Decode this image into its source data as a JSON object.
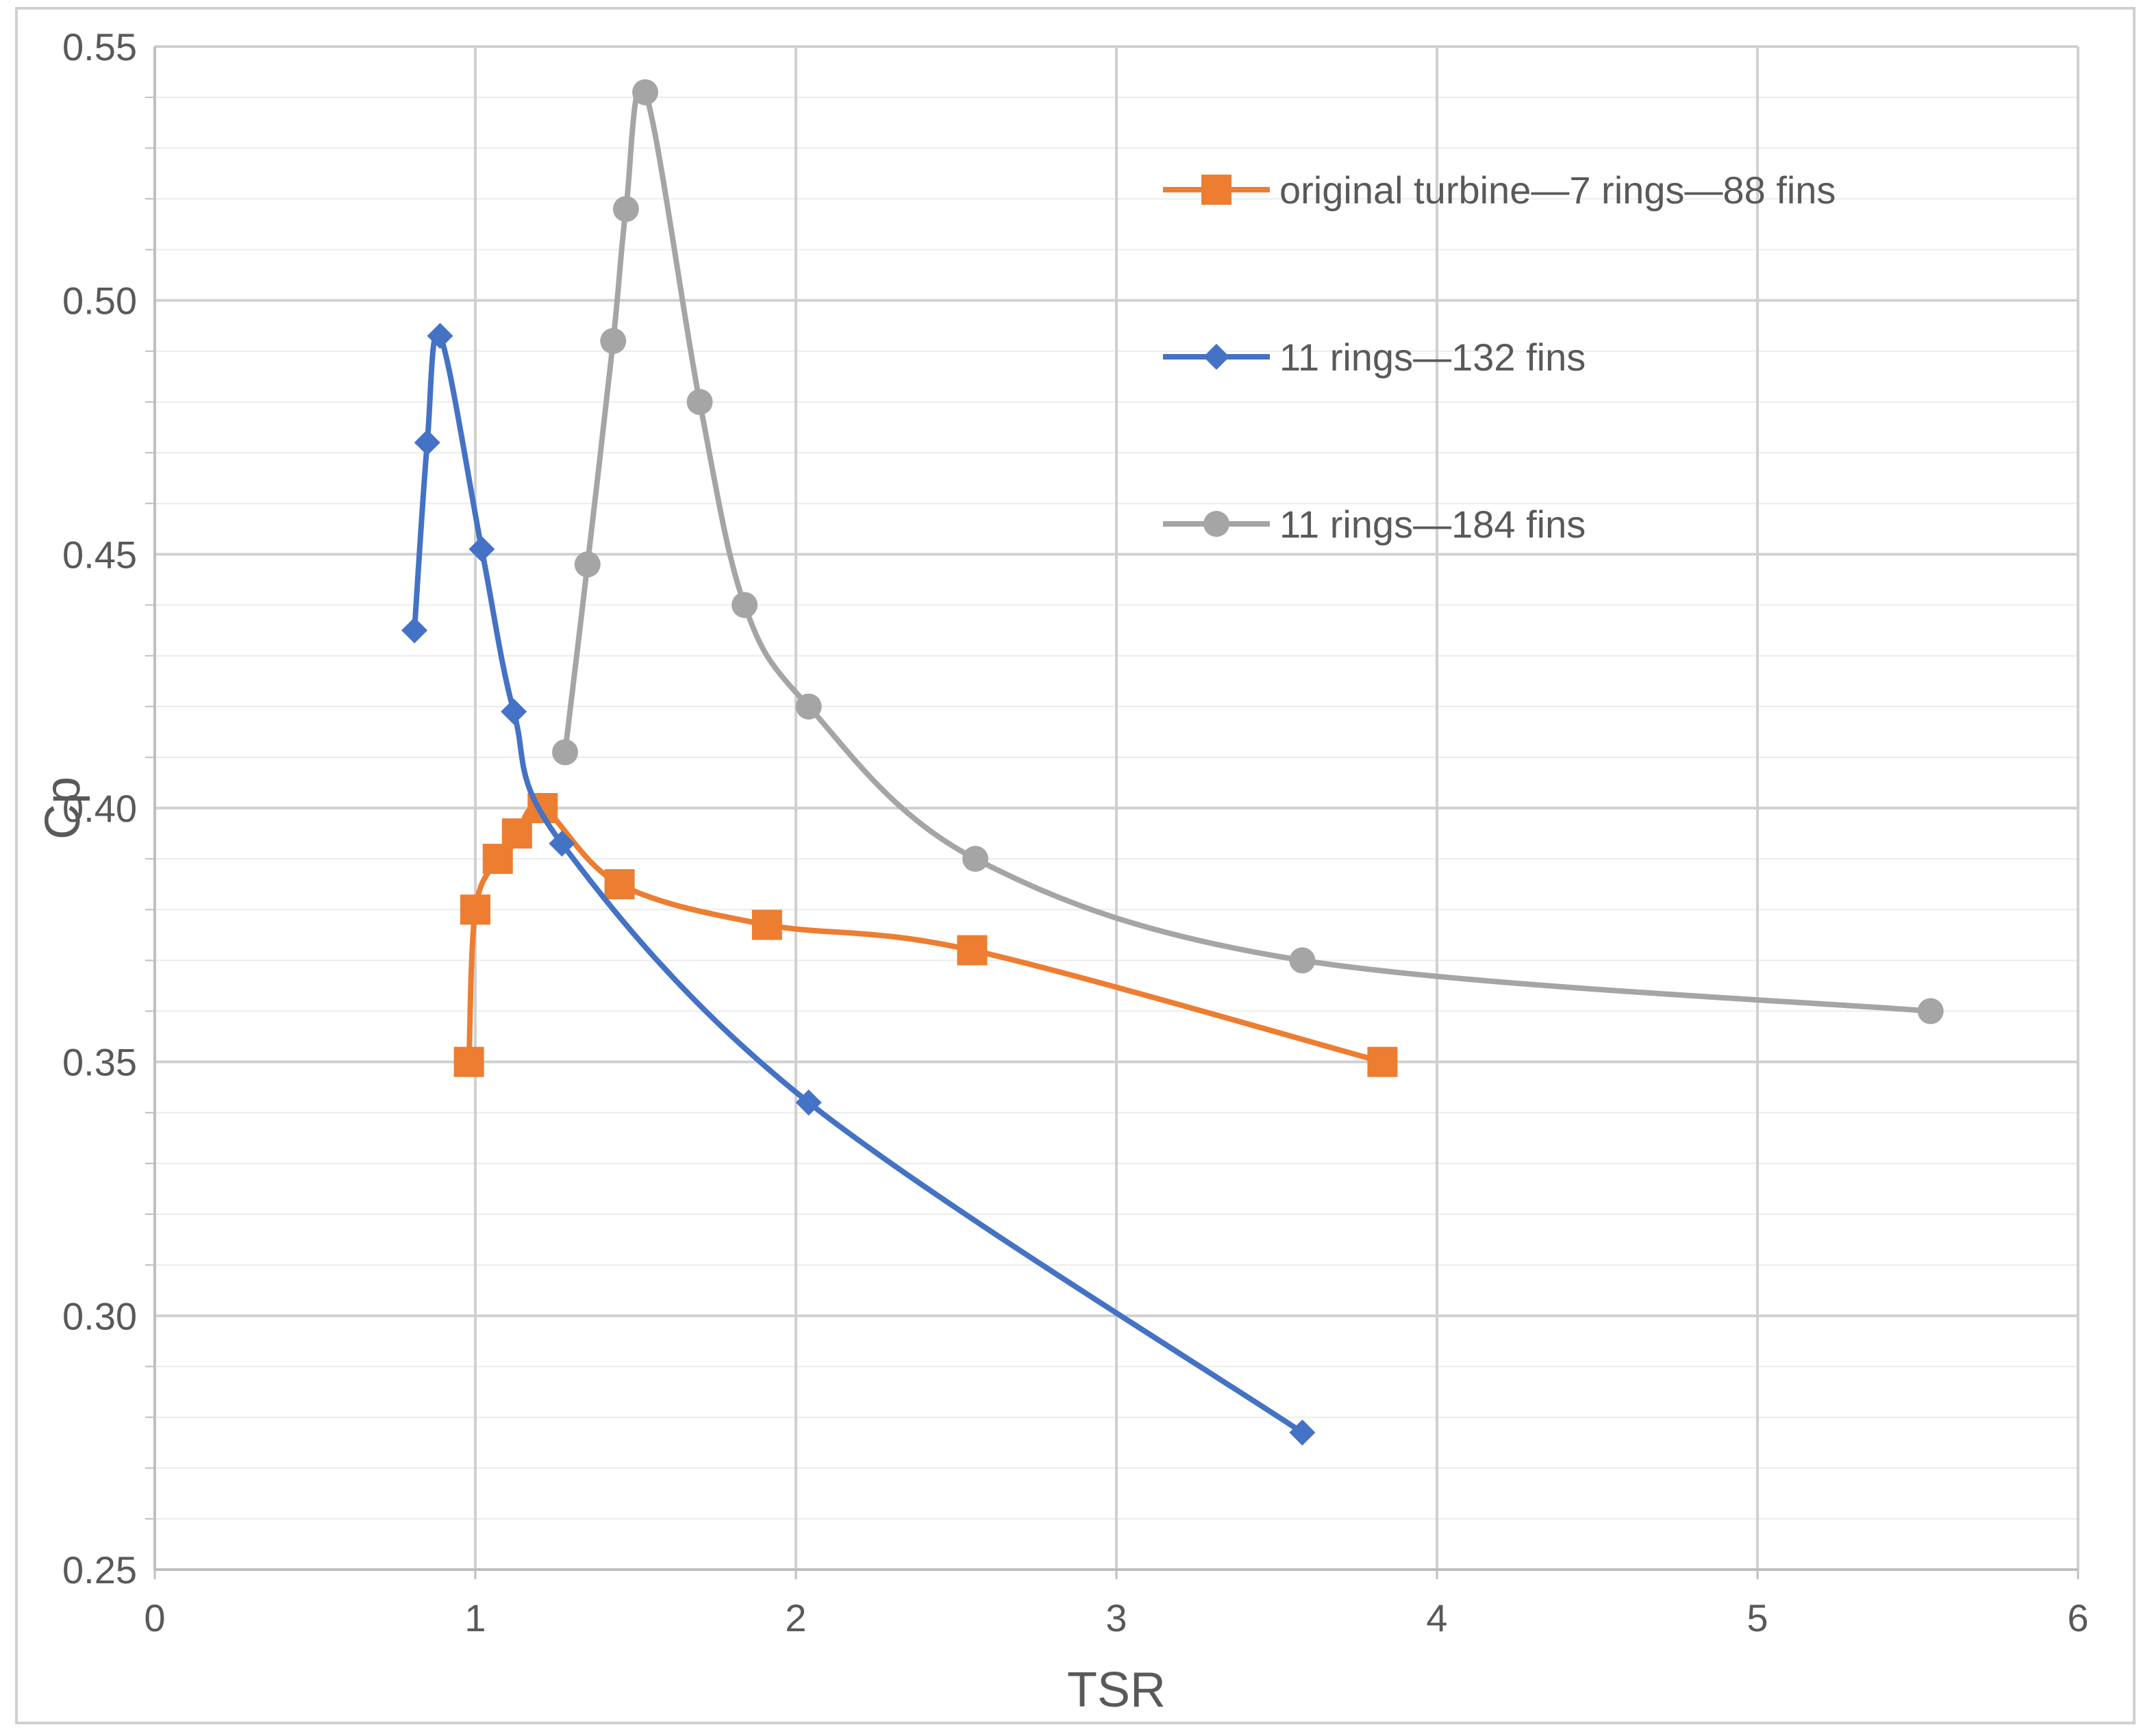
{
  "chart_data": {
    "type": "line",
    "smooth": true,
    "xlabel": "TSR",
    "ylabel": "Cp",
    "xlim": [
      0,
      6
    ],
    "ylim": [
      0.25,
      0.55
    ],
    "x_ticks": [
      "0",
      "1",
      "2",
      "3",
      "4",
      "5",
      "6"
    ],
    "y_ticks": [
      "0.25",
      "0.30",
      "0.35",
      "0.40",
      "0.45",
      "0.50",
      "0.55"
    ],
    "grid": true,
    "minor_grid_y": true,
    "legend_position": "top-right inside plot",
    "series": [
      {
        "name": "original turbine—7 rings—88 fins",
        "color": "#ED7D31",
        "marker": "square",
        "points": [
          [
            0.98,
            0.35
          ],
          [
            1.0,
            0.38
          ],
          [
            1.07,
            0.39
          ],
          [
            1.13,
            0.395
          ],
          [
            1.21,
            0.4
          ],
          [
            1.45,
            0.385
          ],
          [
            1.91,
            0.377
          ],
          [
            2.55,
            0.372
          ],
          [
            3.83,
            0.35
          ]
        ]
      },
      {
        "name": "11 rings—132 fins",
        "color": "#4472C4",
        "marker": "diamond",
        "points": [
          [
            0.81,
            0.435
          ],
          [
            0.85,
            0.472
          ],
          [
            0.89,
            0.493
          ],
          [
            1.02,
            0.451
          ],
          [
            1.12,
            0.419
          ],
          [
            1.27,
            0.393
          ],
          [
            2.04,
            0.342
          ],
          [
            3.58,
            0.277
          ]
        ]
      },
      {
        "name": "11 rings—184 fins",
        "color": "#A5A5A5",
        "marker": "circle",
        "points": [
          [
            1.28,
            0.411
          ],
          [
            1.35,
            0.448
          ],
          [
            1.43,
            0.492
          ],
          [
            1.47,
            0.518
          ],
          [
            1.53,
            0.541
          ],
          [
            1.7,
            0.48
          ],
          [
            1.84,
            0.44
          ],
          [
            2.04,
            0.42
          ],
          [
            2.56,
            0.39
          ],
          [
            3.58,
            0.37
          ],
          [
            5.54,
            0.36
          ]
        ]
      }
    ]
  }
}
